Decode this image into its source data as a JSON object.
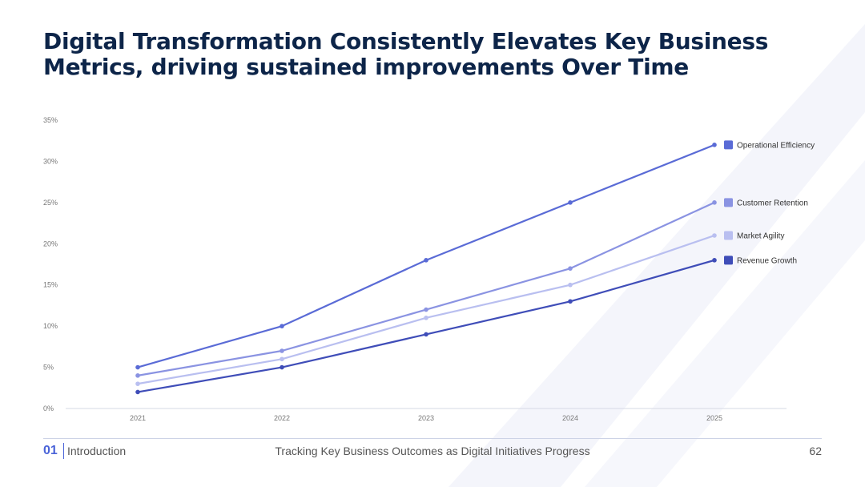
{
  "slide": {
    "title": "Digital Transformation Consistently Elevates Key Business Metrics, driving sustained improvements Over Time"
  },
  "chart_data": {
    "type": "line",
    "title": "Digital Transformation Consistently Elevates Key Business Metrics, driving sustained improvements Over Time",
    "xlabel": "",
    "ylabel": "",
    "categories": [
      "2021",
      "2022",
      "2023",
      "2024",
      "2025"
    ],
    "ylim": [
      0,
      35
    ],
    "yticks": [
      0,
      5,
      10,
      15,
      20,
      25,
      30,
      35
    ],
    "ytick_labels": [
      "0%",
      "5%",
      "10%",
      "15%",
      "20%",
      "25%",
      "30%",
      "35%"
    ],
    "legend_position": "right",
    "series": [
      {
        "name": "Operational Efficiency",
        "values": [
          5,
          10,
          18,
          25,
          32
        ],
        "color": "#5a6bd6"
      },
      {
        "name": "Customer Retention",
        "values": [
          4,
          7,
          12,
          17,
          25
        ],
        "color": "#8a93e2"
      },
      {
        "name": "Market Agility",
        "values": [
          3,
          6,
          11,
          15,
          21
        ],
        "color": "#b9bff0"
      },
      {
        "name": "Revenue Growth",
        "values": [
          2,
          5,
          9,
          13,
          18
        ],
        "color": "#3f4db8"
      }
    ]
  },
  "footer": {
    "section_number": "01",
    "section_name": "Introduction",
    "subtitle": "Tracking Key Business Outcomes as Digital Initiatives Progress",
    "page_number": "62"
  }
}
